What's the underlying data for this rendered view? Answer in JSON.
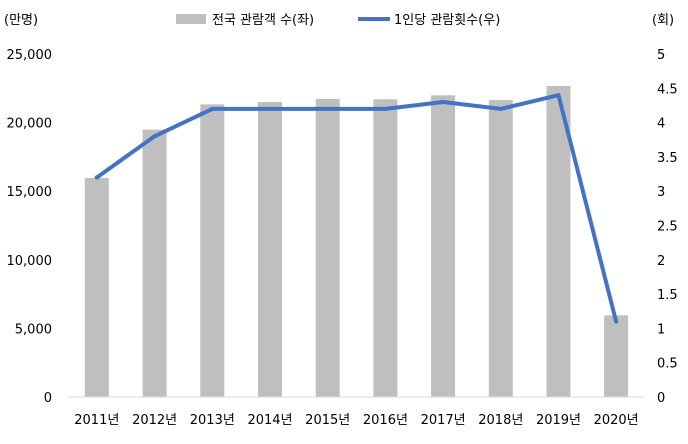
{
  "chart_data": {
    "type": "bar",
    "title": "",
    "categories": [
      "2011년",
      "2012년",
      "2013년",
      "2014년",
      "2015년",
      "2016년",
      "2017년",
      "2018년",
      "2019년",
      "2020년"
    ],
    "series": [
      {
        "name": "전국 관람객 수(좌)",
        "type": "bar",
        "axis": "left",
        "color": "#BFBFBF",
        "values": [
          15970,
          19490,
          21330,
          21500,
          21730,
          21700,
          21990,
          21640,
          22670,
          5950
        ]
      },
      {
        "name": "1인당 관람횟수(우)",
        "type": "line",
        "axis": "right",
        "color": "#4472C4",
        "values": [
          3.2,
          3.8,
          4.2,
          4.2,
          4.2,
          4.2,
          4.3,
          4.2,
          4.4,
          1.1
        ]
      }
    ],
    "y_left": {
      "unit_label": "(만명)",
      "ylim": [
        0,
        25000
      ],
      "ticks": [
        "0",
        "5,000",
        "10,000",
        "15,000",
        "20,000",
        "25,000"
      ]
    },
    "y_right": {
      "unit_label": "(회)",
      "ylim": [
        0,
        5
      ],
      "ticks": [
        "0",
        "0.5",
        "1",
        "1.5",
        "2",
        "2.5",
        "3",
        "3.5",
        "4",
        "4.5",
        "5"
      ]
    },
    "legend": "top-center",
    "grid": false
  }
}
